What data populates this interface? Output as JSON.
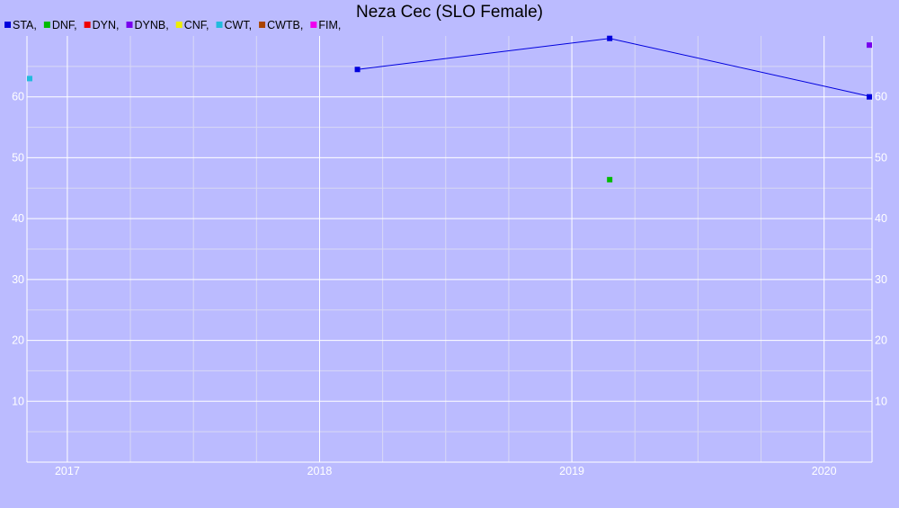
{
  "chart_data": {
    "type": "scatter",
    "title": "Neza Cec (SLO Female)",
    "xlabel": "",
    "ylabel": "",
    "xlim": [
      2016.84,
      2020.19
    ],
    "ylim": [
      0,
      70
    ],
    "x_ticks": [
      2017,
      2018,
      2019,
      2020
    ],
    "x_tick_labels": [
      "2017",
      "2018",
      "2019",
      "2020"
    ],
    "y_ticks": [
      10,
      20,
      30,
      40,
      50,
      60
    ],
    "y_tick_labels": [
      "10",
      "20",
      "30",
      "40",
      "50",
      "60"
    ],
    "grid": true,
    "legend_position": "top-left",
    "background": "#bbbbff",
    "grid_color": "#ffffff",
    "series": [
      {
        "name": "STA",
        "color": "#0000dd",
        "line": true,
        "points": [
          [
            2018.15,
            64.5
          ],
          [
            2019.15,
            69.6
          ],
          [
            2020.19,
            60.0
          ]
        ]
      },
      {
        "name": "DNF",
        "color": "#00bb00",
        "line": false,
        "points": [
          [
            2019.15,
            46.4
          ]
        ]
      },
      {
        "name": "DYN",
        "color": "#ee0000",
        "line": false,
        "points": []
      },
      {
        "name": "DYNB",
        "color": "#7700ee",
        "line": false,
        "points": [
          [
            2020.19,
            68.5
          ]
        ]
      },
      {
        "name": "CNF",
        "color": "#eeee00",
        "line": false,
        "points": []
      },
      {
        "name": "CWT",
        "color": "#22bbdd",
        "line": false,
        "points": [
          [
            2016.85,
            63.0
          ]
        ]
      },
      {
        "name": "CWTB",
        "color": "#aa4400",
        "line": false,
        "points": []
      },
      {
        "name": "FIM",
        "color": "#ee00ee",
        "line": false,
        "points": []
      }
    ]
  }
}
